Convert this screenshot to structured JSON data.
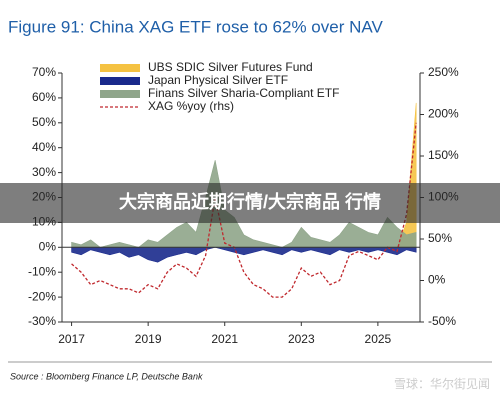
{
  "chart_data": {
    "type": "area",
    "title": "Figure 91: China XAG ETF rose to 62% over NAV",
    "source": "Source : Bloomberg Finance LP, Deutsche Bank",
    "x": [
      2017.0,
      2017.25,
      2017.5,
      2017.75,
      2018.0,
      2018.25,
      2018.5,
      2018.75,
      2019.0,
      2019.25,
      2019.5,
      2019.75,
      2020.0,
      2020.25,
      2020.5,
      2020.75,
      2021.0,
      2021.25,
      2021.5,
      2021.75,
      2022.0,
      2022.25,
      2022.5,
      2022.75,
      2023.0,
      2023.25,
      2023.5,
      2023.75,
      2024.0,
      2024.25,
      2024.5,
      2024.75,
      2025.0,
      2025.25,
      2025.5,
      2025.75,
      2026.0
    ],
    "xlim": [
      2016.75,
      2026.1
    ],
    "xticks": [
      2017,
      2019,
      2021,
      2023,
      2025
    ],
    "ylim": [
      -30,
      70
    ],
    "yticks": [
      {
        "value": -30,
        "label": "-30%"
      },
      {
        "value": -20,
        "label": "-20%"
      },
      {
        "value": -10,
        "label": "-10%"
      },
      {
        "value": 0,
        "label": "0%"
      },
      {
        "value": 10,
        "label": "10%"
      },
      {
        "value": 20,
        "label": "20%"
      },
      {
        "value": 30,
        "label": "30%"
      },
      {
        "value": 40,
        "label": "40%"
      },
      {
        "value": 50,
        "label": "50%"
      },
      {
        "value": 60,
        "label": "60%"
      },
      {
        "value": 70,
        "label": "70%"
      }
    ],
    "y2lim": [
      -50,
      250
    ],
    "y2ticks": [
      {
        "value": -50,
        "label": "-50%"
      },
      {
        "value": 0,
        "label": "0%"
      },
      {
        "value": 50,
        "label": "50%"
      },
      {
        "value": 100,
        "label": "100%"
      },
      {
        "value": 150,
        "label": "150%"
      },
      {
        "value": 200,
        "label": "200%"
      },
      {
        "value": 250,
        "label": "250%"
      }
    ],
    "legend": "top-left",
    "series": [
      {
        "name": "UBS SDIC Silver Futures Fund",
        "color": "#f5c242",
        "values": [
          0,
          0,
          0,
          0,
          0,
          0,
          0,
          0,
          0,
          0,
          0,
          0,
          0,
          0,
          0,
          0,
          0,
          0,
          0,
          0,
          0,
          0,
          0,
          0,
          0,
          0,
          0,
          0,
          0,
          0,
          0,
          0,
          0,
          0,
          0,
          10,
          58
        ]
      },
      {
        "name": "Japan Physical Silver ETF",
        "color": "#1a2a8c",
        "values": [
          -2,
          -3,
          -1,
          -2,
          -3,
          -2,
          -4,
          -3,
          -5,
          -6,
          -4,
          -3,
          -2,
          -3,
          -1,
          0,
          -1,
          -2,
          -3,
          -2,
          -1,
          -2,
          -3,
          -1,
          -2,
          -1,
          -2,
          -3,
          -1,
          -2,
          -1,
          -2,
          -1,
          -2,
          -3,
          -1,
          -2
        ]
      },
      {
        "name": "Finans Silver Sharia-Compliant ETF",
        "color": "#8fa58a",
        "values": [
          2,
          1,
          3,
          0,
          1,
          2,
          1,
          0,
          3,
          2,
          5,
          8,
          10,
          6,
          20,
          35,
          15,
          12,
          5,
          3,
          2,
          1,
          0,
          2,
          8,
          4,
          3,
          2,
          5,
          10,
          8,
          6,
          5,
          12,
          8,
          5,
          6
        ]
      },
      {
        "name": "XAG %yoy (rhs)",
        "color": "#c0282d",
        "axis": "y2",
        "style": "dashed",
        "values": [
          20,
          10,
          -5,
          0,
          -5,
          -10,
          -10,
          -15,
          -5,
          -10,
          10,
          20,
          15,
          5,
          30,
          100,
          45,
          40,
          10,
          -5,
          -10,
          -20,
          -20,
          -10,
          15,
          5,
          10,
          -5,
          0,
          30,
          35,
          30,
          25,
          40,
          35,
          80,
          190
        ]
      }
    ]
  },
  "overlay_text": "大宗商品近期行情/大宗商品 行情",
  "watermark": "雪球：华尔街见闻"
}
